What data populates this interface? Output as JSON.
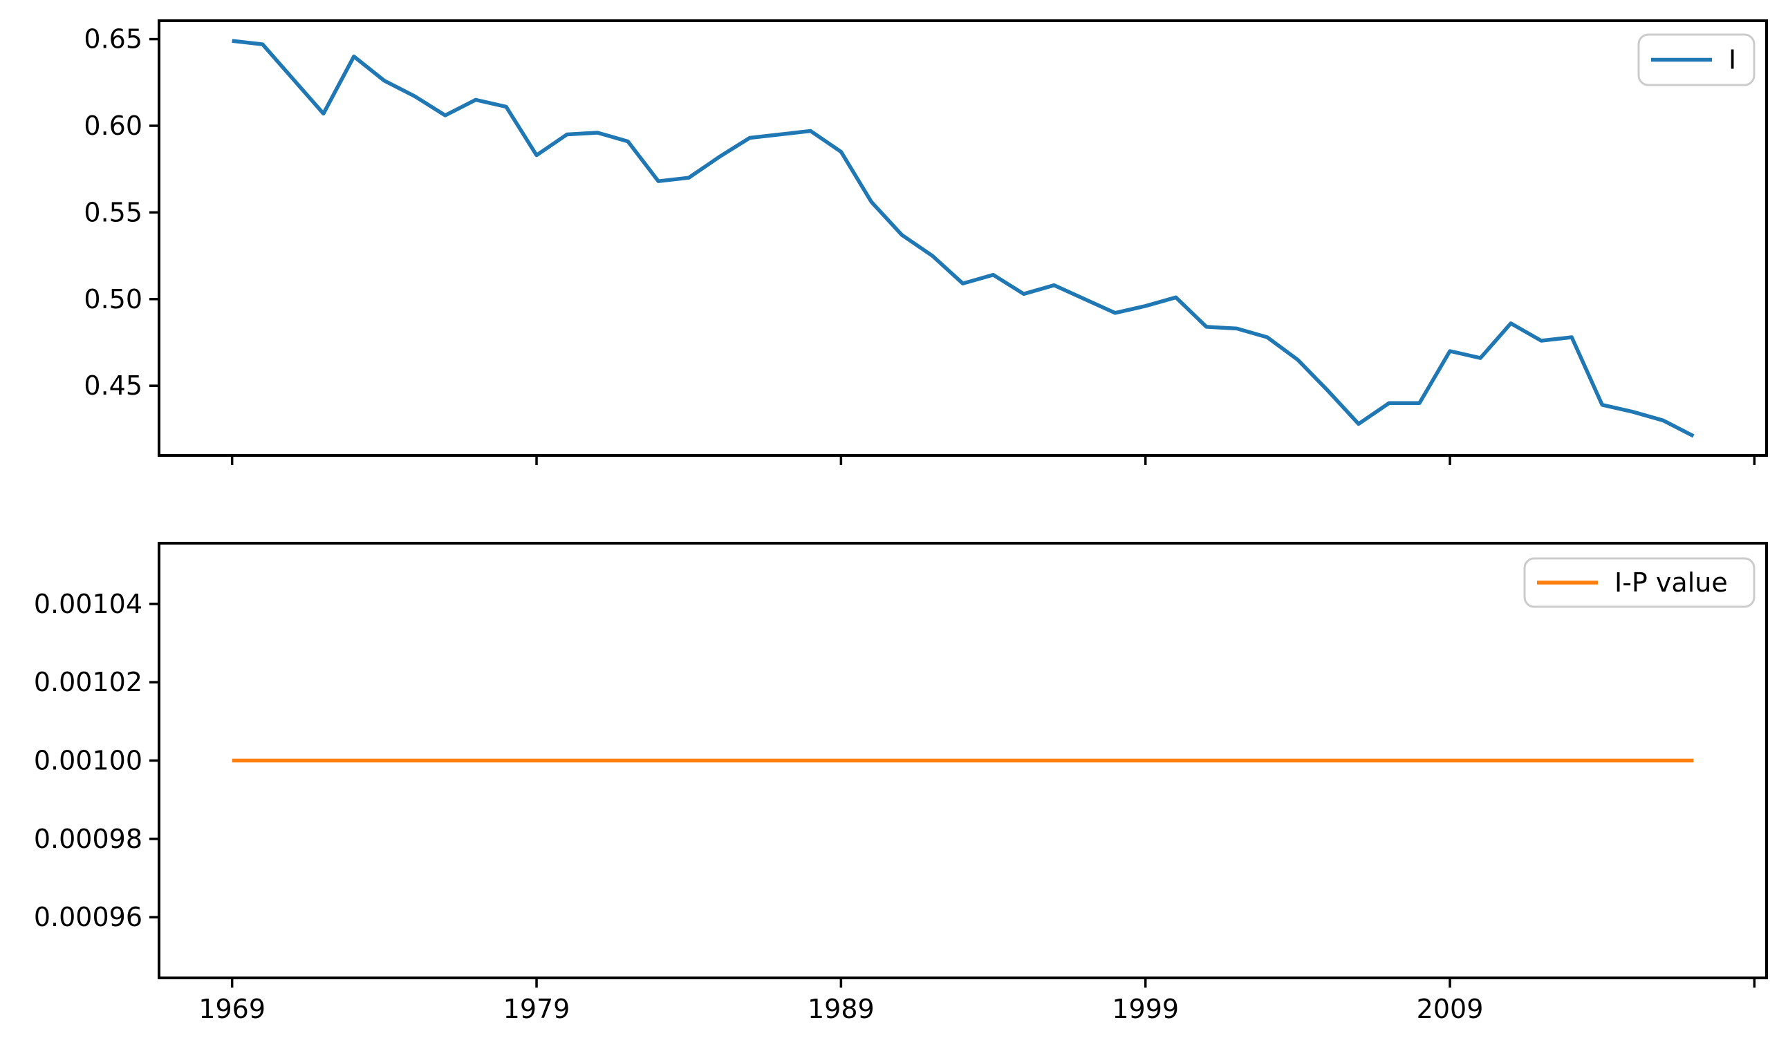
{
  "figure": {
    "background": "#ffffff",
    "text_color": "#000000",
    "spine_color": "#000000"
  },
  "chart_data": [
    {
      "type": "line",
      "panel": "top",
      "title": "",
      "xlabel": "",
      "ylabel": "",
      "grid": false,
      "x": [
        1969,
        1970,
        1971,
        1972,
        1973,
        1974,
        1975,
        1976,
        1977,
        1978,
        1979,
        1980,
        1981,
        1982,
        1983,
        1984,
        1985,
        1986,
        1987,
        1988,
        1989,
        1990,
        1991,
        1992,
        1993,
        1994,
        1995,
        1996,
        1997,
        1998,
        1999,
        2000,
        2001,
        2002,
        2003,
        2004,
        2005,
        2006,
        2007,
        2008,
        2009,
        2010,
        2011,
        2012,
        2013,
        2014,
        2015,
        2016,
        2017
      ],
      "series": [
        {
          "name": "I",
          "color": "#1f77b4",
          "values": [
            0.649,
            0.647,
            0.627,
            0.607,
            0.64,
            0.626,
            0.617,
            0.606,
            0.615,
            0.611,
            0.583,
            0.595,
            0.596,
            0.591,
            0.568,
            0.57,
            0.582,
            0.593,
            0.595,
            0.597,
            0.585,
            0.556,
            0.537,
            0.525,
            0.509,
            0.514,
            0.503,
            0.508,
            0.5,
            0.492,
            0.496,
            0.501,
            0.484,
            0.483,
            0.478,
            0.465,
            0.447,
            0.428,
            0.44,
            0.44,
            0.47,
            0.466,
            0.486,
            0.476,
            0.478,
            0.439,
            0.435,
            0.43,
            0.421
          ]
        }
      ],
      "xlim": [
        1966.6,
        2019.4
      ],
      "ylim": [
        0.4098,
        0.6606
      ],
      "xtick_values": [
        1969,
        1979,
        1989,
        1999,
        2009,
        2019
      ],
      "xtick_labels": [
        "",
        "",
        "",
        "",
        "",
        ""
      ],
      "ytick_values": [
        0.45,
        0.5,
        0.55,
        0.6,
        0.65
      ],
      "ytick_labels": [
        "0.45",
        "0.50",
        "0.55",
        "0.60",
        "0.65"
      ],
      "legend": {
        "entries": [
          "I"
        ],
        "location": "upper right"
      }
    },
    {
      "type": "line",
      "panel": "bottom",
      "title": "",
      "xlabel": "",
      "ylabel": "",
      "grid": false,
      "x": [
        1969,
        1970,
        1971,
        1972,
        1973,
        1974,
        1975,
        1976,
        1977,
        1978,
        1979,
        1980,
        1981,
        1982,
        1983,
        1984,
        1985,
        1986,
        1987,
        1988,
        1989,
        1990,
        1991,
        1992,
        1993,
        1994,
        1995,
        1996,
        1997,
        1998,
        1999,
        2000,
        2001,
        2002,
        2003,
        2004,
        2005,
        2006,
        2007,
        2008,
        2009,
        2010,
        2011,
        2012,
        2013,
        2014,
        2015,
        2016,
        2017
      ],
      "series": [
        {
          "name": "I-P value",
          "color": "#ff7f0e",
          "values": [
            0.001,
            0.001,
            0.001,
            0.001,
            0.001,
            0.001,
            0.001,
            0.001,
            0.001,
            0.001,
            0.001,
            0.001,
            0.001,
            0.001,
            0.001,
            0.001,
            0.001,
            0.001,
            0.001,
            0.001,
            0.001,
            0.001,
            0.001,
            0.001,
            0.001,
            0.001,
            0.001,
            0.001,
            0.001,
            0.001,
            0.001,
            0.001,
            0.001,
            0.001,
            0.001,
            0.001,
            0.001,
            0.001,
            0.001,
            0.001,
            0.001,
            0.001,
            0.001,
            0.001,
            0.001,
            0.001,
            0.001,
            0.001,
            0.001
          ]
        }
      ],
      "xlim": [
        1966.6,
        2019.4
      ],
      "ylim": [
        0.0009445,
        0.0010555
      ],
      "xtick_values": [
        1969,
        1979,
        1989,
        1999,
        2009,
        2019
      ],
      "xtick_labels": [
        "1969",
        "1979",
        "1989",
        "1999",
        "2009",
        ""
      ],
      "ytick_values": [
        0.00096,
        0.00098,
        0.001,
        0.00102,
        0.00104
      ],
      "ytick_labels": [
        "0.00096",
        "0.00098",
        "0.00100",
        "0.00102",
        "0.00104"
      ],
      "legend": {
        "entries": [
          "I-P value"
        ],
        "location": "upper right"
      }
    }
  ]
}
